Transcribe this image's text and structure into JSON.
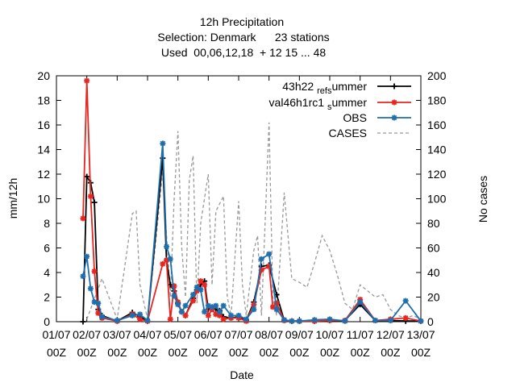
{
  "chart_data": {
    "type": "line",
    "title_lines": [
      "12h Precipitation",
      "Selection: Denmark      23 stations",
      "Used  00,06,12,18  + 12 15 ... 48"
    ],
    "xlabel": "Date",
    "ylabel": "mm/12h",
    "y2label": "No cases",
    "xlim": [
      0,
      12
    ],
    "ylim": [
      0,
      20
    ],
    "y2lim": [
      0,
      200
    ],
    "yticks": [
      0,
      2,
      4,
      6,
      8,
      10,
      12,
      14,
      16,
      18,
      20
    ],
    "y2ticks": [
      0,
      20,
      40,
      60,
      80,
      100,
      120,
      140,
      160,
      180,
      200
    ],
    "xticks": [
      {
        "date": "01/07",
        "time": "00Z"
      },
      {
        "date": "02/07",
        "time": "00Z"
      },
      {
        "date": "03/07",
        "time": "00Z"
      },
      {
        "date": "04/07",
        "time": "00Z"
      },
      {
        "date": "05/07",
        "time": "00Z"
      },
      {
        "date": "06/07",
        "time": "00Z"
      },
      {
        "date": "07/07",
        "time": "00Z"
      },
      {
        "date": "08/07",
        "time": "00Z"
      },
      {
        "date": "09/07",
        "time": "00Z"
      },
      {
        "date": "10/07",
        "time": "00Z"
      },
      {
        "date": "11/07",
        "time": "00Z"
      },
      {
        "date": "12/07",
        "time": "00Z"
      },
      {
        "date": "13/07",
        "time": "00Z"
      }
    ],
    "grid": false,
    "legend_position": "top-right",
    "x_unit": "days since 01/07 00Z",
    "series": [
      {
        "name": "43h22 ",
        "name_sub": "ref",
        "name_mid": "",
        "name_sub2": "s",
        "name_tail": "ummer",
        "legend_parts": [
          [
            "43h22 ",
            false
          ],
          [
            "ref",
            true
          ],
          [
            "",
            false
          ],
          [
            "s",
            true
          ],
          [
            "ummer",
            false
          ]
        ],
        "color": "#000000",
        "marker": "plus",
        "axis": "y",
        "x": [
          0.875,
          1.0,
          1.125,
          1.25,
          1.375,
          1.5,
          2.0,
          2.5,
          2.75,
          3.0,
          3.5,
          3.625,
          3.75,
          3.875,
          4.0,
          4.125,
          4.25,
          4.5,
          4.625,
          4.75,
          4.875,
          5.0,
          5.125,
          5.25,
          5.375,
          5.5,
          5.75,
          6.0,
          6.25,
          6.5,
          6.75,
          7.0,
          7.25,
          7.5,
          7.75,
          8.0,
          8.5,
          9.0,
          9.5,
          10.0,
          10.5,
          11.0,
          11.5,
          12.0
        ],
        "y": [
          0.0,
          11.8,
          11.3,
          9.7,
          1.0,
          0.5,
          0.05,
          0.75,
          0.4,
          0.05,
          13.3,
          5.0,
          3.0,
          2.5,
          1.5,
          0.8,
          0.5,
          1.9,
          2.6,
          3.0,
          3.3,
          1.0,
          1.1,
          1.0,
          0.9,
          0.4,
          0.3,
          0.4,
          0.1,
          1.6,
          4.5,
          4.6,
          2.2,
          0.1,
          0.05,
          0.05,
          0.05,
          0.1,
          0.1,
          1.4,
          0.1,
          0.1,
          0.05,
          0.05
        ]
      },
      {
        "name": "val46h1rc1 ",
        "legend_parts": [
          [
            "val46h1rc1 ",
            false
          ],
          [
            "s",
            true
          ],
          [
            "ummer",
            false
          ]
        ],
        "color": "#e8251e",
        "marker": "star",
        "axis": "y",
        "x": [
          0.875,
          1.0,
          1.125,
          1.25,
          1.375,
          1.5,
          2.0,
          2.5,
          2.75,
          3.0,
          3.5,
          3.625,
          3.75,
          3.875,
          4.0,
          4.125,
          4.25,
          4.5,
          4.625,
          4.75,
          4.875,
          5.0,
          5.125,
          5.25,
          5.375,
          5.5,
          5.75,
          6.0,
          6.25,
          6.5,
          6.75,
          7.0,
          7.125,
          7.25,
          7.5,
          7.75,
          8.0,
          8.5,
          9.0,
          9.5,
          10.0,
          10.5,
          11.0,
          11.5,
          12.0
        ],
        "y": [
          8.4,
          19.6,
          10.2,
          4.1,
          0.7,
          0.3,
          0.05,
          0.6,
          0.2,
          0.05,
          4.7,
          5.0,
          0.2,
          2.9,
          1.6,
          0.8,
          0.5,
          1.7,
          2.5,
          3.3,
          3.0,
          0.5,
          1.0,
          0.6,
          0.5,
          0.2,
          0.3,
          0.3,
          0.05,
          1.4,
          4.2,
          4.5,
          1.2,
          1.5,
          0.1,
          0.05,
          0.05,
          0.05,
          0.1,
          0.1,
          1.8,
          0.1,
          0.2,
          0.3,
          0.05
        ]
      },
      {
        "name": "OBS",
        "legend_parts": [
          [
            "OBS",
            false
          ]
        ],
        "color": "#1f6fae",
        "marker": "star",
        "axis": "y",
        "x": [
          0.875,
          1.0,
          1.125,
          1.25,
          1.375,
          1.5,
          2.0,
          2.5,
          2.75,
          3.0,
          3.5,
          3.625,
          3.75,
          3.875,
          4.0,
          4.125,
          4.25,
          4.5,
          4.625,
          4.75,
          4.875,
          5.0,
          5.125,
          5.25,
          5.375,
          5.5,
          5.75,
          6.0,
          6.25,
          6.5,
          6.75,
          7.0,
          7.25,
          7.5,
          7.75,
          8.0,
          8.5,
          9.0,
          9.5,
          10.0,
          10.5,
          11.0,
          11.5,
          12.0
        ],
        "y": [
          3.7,
          5.3,
          2.7,
          1.6,
          1.5,
          0.4,
          0.1,
          0.5,
          0.6,
          0.1,
          14.5,
          6.1,
          5.1,
          2.1,
          1.4,
          0.8,
          1.3,
          2.2,
          2.8,
          2.6,
          0.8,
          1.3,
          1.2,
          1.3,
          0.8,
          1.3,
          0.5,
          0.5,
          0.2,
          1.0,
          5.1,
          5.5,
          1.0,
          0.15,
          0.05,
          0.05,
          0.15,
          0.2,
          0.05,
          1.6,
          0.1,
          0.1,
          1.7,
          0.05
        ]
      },
      {
        "name": "CASES",
        "legend_parts": [
          [
            "CASES",
            false
          ]
        ],
        "color": "#999999",
        "marker": "none",
        "dash": true,
        "axis": "y2",
        "x": [
          1.0,
          1.5,
          2.0,
          2.5,
          2.625,
          2.75,
          3.0,
          3.25,
          3.5,
          3.75,
          3.875,
          4.0,
          4.125,
          4.25,
          4.375,
          4.5,
          4.625,
          4.75,
          5.0,
          5.125,
          5.25,
          5.5,
          5.625,
          5.75,
          6.0,
          6.125,
          6.25,
          6.5,
          6.625,
          6.75,
          7.0,
          7.125,
          7.25,
          7.5,
          7.625,
          7.75,
          8.0,
          8.25,
          8.5,
          8.75,
          9.0,
          9.25,
          9.5,
          9.75,
          10.0,
          10.25,
          10.5,
          10.75,
          11.0,
          11.25,
          11.5,
          11.75,
          12.0
        ],
        "y": [
          2,
          35,
          2,
          88,
          90,
          30,
          2,
          60,
          122,
          20,
          100,
          155,
          60,
          20,
          115,
          135,
          15,
          80,
          120,
          30,
          90,
          102,
          20,
          5,
          98,
          30,
          5,
          58,
          70,
          5,
          162,
          20,
          5,
          105,
          70,
          35,
          32,
          28,
          48,
          70,
          58,
          38,
          15,
          10,
          30,
          25,
          20,
          22,
          10,
          5,
          3,
          5,
          2
        ]
      }
    ]
  }
}
